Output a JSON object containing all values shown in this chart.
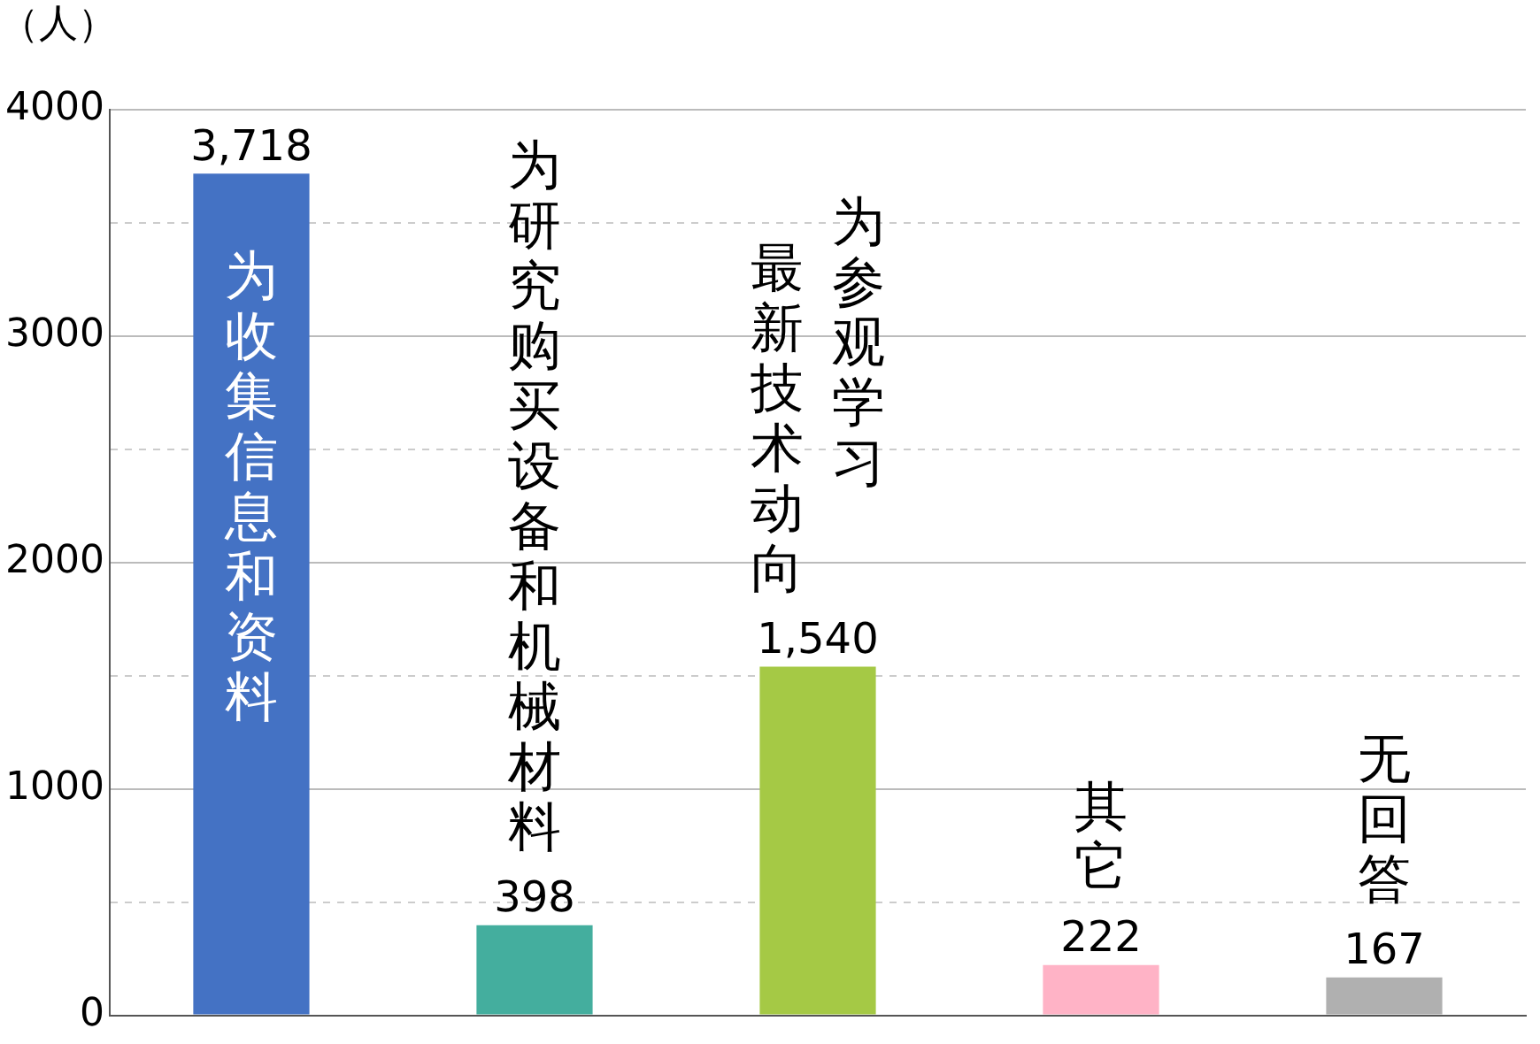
{
  "chart_data": {
    "type": "bar",
    "ylabel": "（人）",
    "categories": [
      "为收集信息和资料",
      "为研究购买设备和机械材料",
      "为参观学习最新技术动向",
      "其它",
      "无回答"
    ],
    "values": [
      3718,
      398,
      1540,
      222,
      167
    ],
    "colors": [
      "#4472c4",
      "#44ae9e",
      "#a5c945",
      "#ffb3c6",
      "#b0b0b0"
    ],
    "value_labels": [
      "3,718",
      "398",
      "1,540",
      "222",
      "167"
    ],
    "ylim": [
      0,
      4000
    ],
    "yticks": [
      0,
      {
        "value": 500,
        "label": null
      },
      1000,
      {
        "value": 1500,
        "label": null
      },
      2000,
      {
        "value": 2500,
        "label": null
      },
      3000,
      {
        "value": 3500,
        "label": null
      },
      4000
    ],
    "grid": "y",
    "tick_labels": "y",
    "legend": false
  }
}
